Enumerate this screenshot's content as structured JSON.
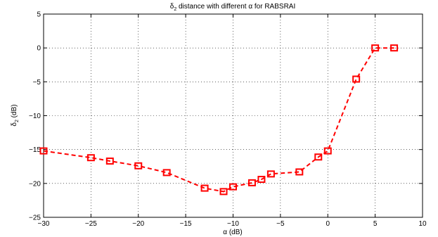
{
  "chart_data": {
    "type": "line",
    "title_parts": [
      "δ",
      "2",
      " distance with different ",
      "α",
      " for RABSRAI"
    ],
    "xlabel_parts": [
      "α",
      " (dB)"
    ],
    "ylabel_parts": [
      "δ",
      "2",
      " (dB)"
    ],
    "xlim": [
      -30,
      10
    ],
    "ylim": [
      -25,
      5
    ],
    "xticks": [
      -30,
      -25,
      -20,
      -15,
      -10,
      -5,
      0,
      5,
      10
    ],
    "yticks": [
      -25,
      -20,
      -15,
      -10,
      -5,
      0,
      5
    ],
    "xtick_labels": [
      "−30",
      "−25",
      "−20",
      "−15",
      "−10",
      "−5",
      "0",
      "5",
      "10"
    ],
    "ytick_labels": [
      "−25",
      "−20",
      "−15",
      "−10",
      "−5",
      "0",
      "5"
    ],
    "grid": true,
    "series": [
      {
        "line_style": "dashed",
        "marker": "square",
        "color": "#ff0000",
        "x": [
          -30,
          -25,
          -23,
          -20,
          -17,
          -13,
          -11,
          -10,
          -8,
          -7,
          -6,
          -3,
          -1,
          0,
          3,
          5,
          7
        ],
        "y": [
          -15.2,
          -16.2,
          -16.7,
          -17.4,
          -18.4,
          -20.7,
          -21.2,
          -20.5,
          -19.9,
          -19.4,
          -18.6,
          -18.3,
          -16.1,
          -15.2,
          -4.6,
          0,
          0
        ]
      }
    ]
  }
}
